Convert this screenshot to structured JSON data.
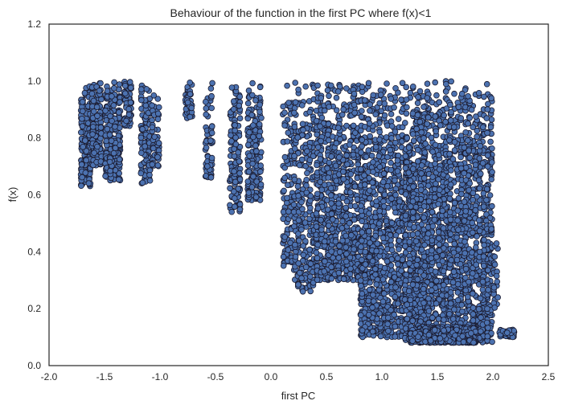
{
  "chart_data": {
    "type": "scatter",
    "title": "Behaviour of the function in the first PC where f(x)<1",
    "xlabel": "first PC",
    "ylabel": "f(x)",
    "xlim": [
      -2.0,
      2.5
    ],
    "ylim": [
      0.0,
      1.2
    ],
    "xticks": [
      "-2.0",
      "-1.5",
      "-1.0",
      "-0.5",
      "0.0",
      "0.5",
      "1.0",
      "1.5",
      "2.0",
      "2.5"
    ],
    "yticks": [
      "0.0",
      "0.2",
      "0.4",
      "0.6",
      "0.8",
      "1.0",
      "1.2"
    ],
    "grid": false,
    "legend": "none",
    "marker_color": "#4c72b0",
    "marker_edge_color": "#1a1a2e",
    "clusters": [
      {
        "x": [
          -1.72,
          -1.62
        ],
        "y": [
          0.63,
          1.0
        ],
        "n": 160
      },
      {
        "x": [
          -1.62,
          -1.52
        ],
        "y": [
          0.7,
          1.0
        ],
        "n": 140
      },
      {
        "x": [
          -1.5,
          -1.35
        ],
        "y": [
          0.65,
          1.0
        ],
        "n": 200
      },
      {
        "x": [
          -1.33,
          -1.25
        ],
        "y": [
          0.84,
          1.0
        ],
        "n": 60
      },
      {
        "x": [
          -1.18,
          -1.08
        ],
        "y": [
          0.64,
          1.0
        ],
        "n": 110
      },
      {
        "x": [
          -1.08,
          -1.0
        ],
        "y": [
          0.7,
          0.95
        ],
        "n": 50
      },
      {
        "x": [
          -0.78,
          -0.7
        ],
        "y": [
          0.87,
          1.0
        ],
        "n": 40
      },
      {
        "x": [
          -0.6,
          -0.52
        ],
        "y": [
          0.66,
          1.0
        ],
        "n": 60
      },
      {
        "x": [
          -0.38,
          -0.27
        ],
        "y": [
          0.54,
          0.99
        ],
        "n": 130
      },
      {
        "x": [
          -0.22,
          -0.08
        ],
        "y": [
          0.58,
          1.0
        ],
        "n": 160
      },
      {
        "x": [
          0.1,
          0.2
        ],
        "y": [
          0.35,
          1.0
        ],
        "n": 110
      },
      {
        "x": [
          0.2,
          0.4
        ],
        "y": [
          0.26,
          1.0
        ],
        "n": 260
      },
      {
        "x": [
          0.4,
          0.8
        ],
        "y": [
          0.3,
          1.0
        ],
        "n": 700
      },
      {
        "x": [
          0.8,
          1.2
        ],
        "y": [
          0.1,
          1.0
        ],
        "n": 900
      },
      {
        "x": [
          1.2,
          1.6
        ],
        "y": [
          0.08,
          1.0
        ],
        "n": 1100
      },
      {
        "x": [
          1.6,
          2.0
        ],
        "y": [
          0.08,
          1.0
        ],
        "n": 900
      },
      {
        "x": [
          1.25,
          1.85
        ],
        "y": [
          0.08,
          0.14
        ],
        "n": 500
      },
      {
        "x": [
          2.0,
          2.05
        ],
        "y": [
          0.2,
          0.45
        ],
        "n": 25
      },
      {
        "x": [
          2.05,
          2.2
        ],
        "y": [
          0.1,
          0.13
        ],
        "n": 40
      }
    ]
  }
}
